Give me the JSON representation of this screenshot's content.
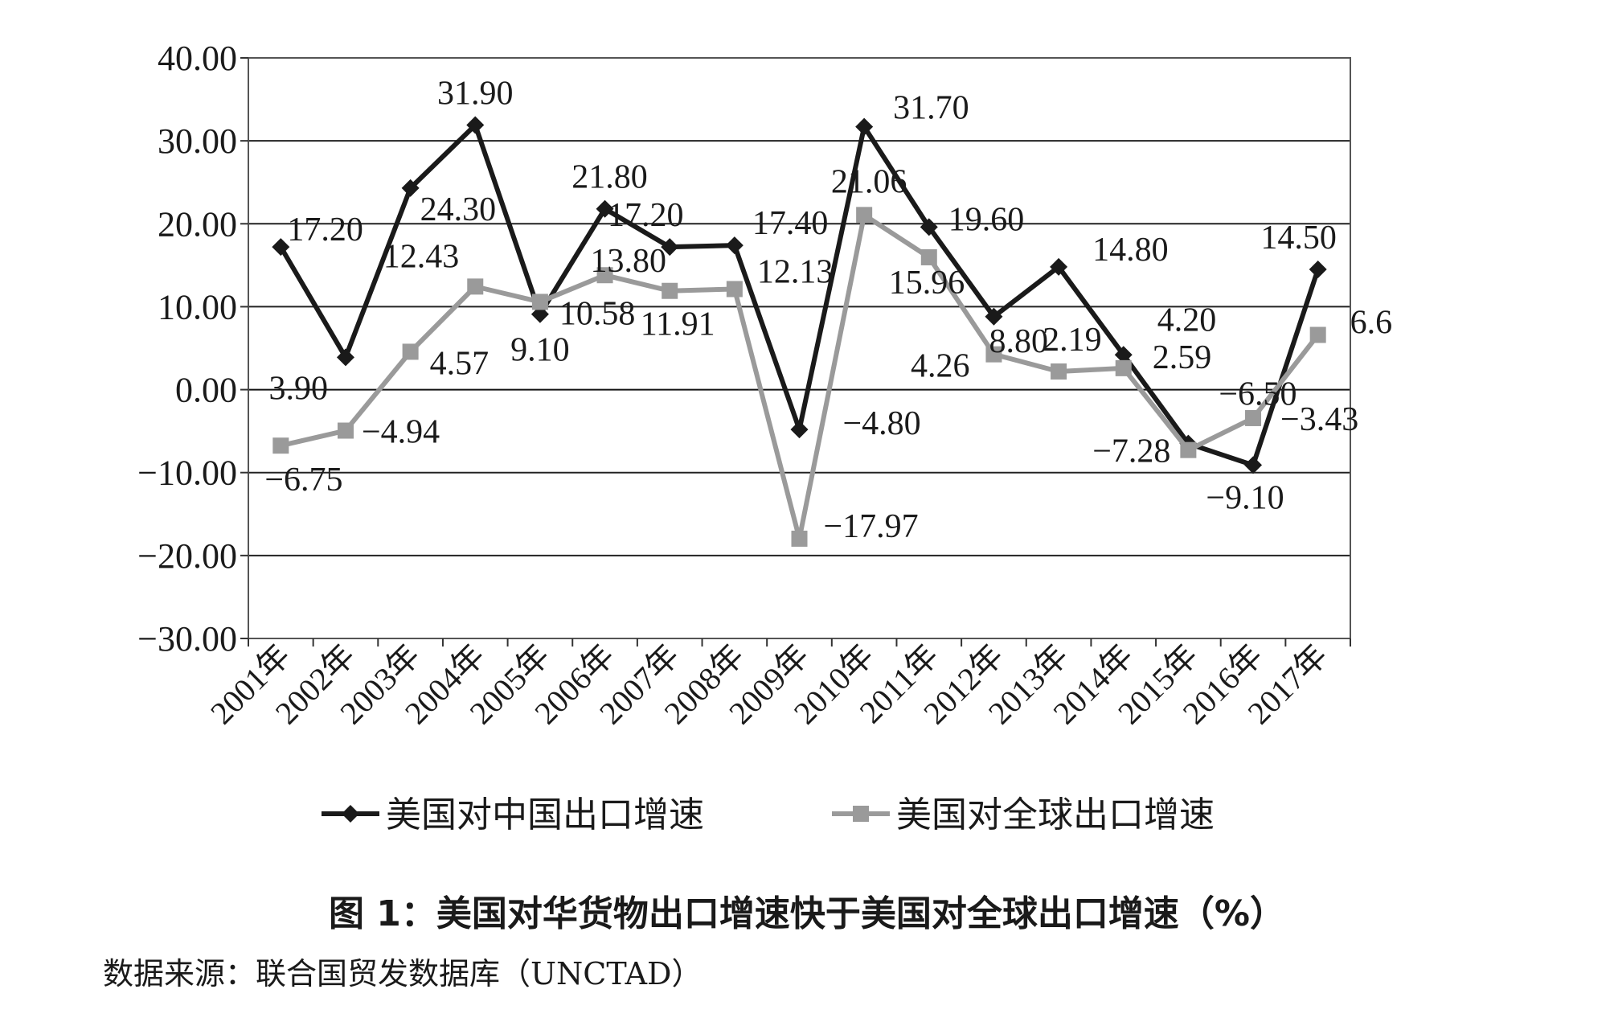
{
  "chart_data": {
    "type": "line",
    "categories": [
      "2001年",
      "2002年",
      "2003年",
      "2004年",
      "2005年",
      "2006年",
      "2007年",
      "2008年",
      "2009年",
      "2010年",
      "2011年",
      "2012年",
      "2013年",
      "2014年",
      "2015年",
      "2016年",
      "2017年"
    ],
    "ylim": [
      -30,
      40
    ],
    "yticks": [
      "40.00",
      "30.00",
      "20.00",
      "10.00",
      "0.00",
      "−10.00",
      "−20.00",
      "−30.00"
    ],
    "grid": true,
    "legend": "bottom",
    "series": [
      {
        "name": "美国对中国出口增速",
        "color": "#1a1a1a",
        "marker": "diamond",
        "values": [
          17.2,
          3.9,
          24.3,
          31.9,
          9.1,
          21.8,
          17.2,
          17.4,
          -4.8,
          31.7,
          19.6,
          8.8,
          14.8,
          4.2,
          -6.5,
          -9.1,
          14.5
        ],
        "labels": [
          "17.20",
          "3.90",
          "24.30",
          "31.90",
          "9.10",
          "21.80",
          "17.20",
          "17.40",
          "−4.80",
          "31.70",
          "19.60",
          "8.80",
          "14.80",
          "4.20",
          "−6.50",
          "−9.10",
          "14.50"
        ]
      },
      {
        "name": "美国对全球出口增速",
        "color": "#9a9a9a",
        "marker": "square",
        "values": [
          -6.75,
          -4.94,
          4.57,
          12.43,
          10.58,
          13.8,
          11.91,
          12.13,
          -17.97,
          21.06,
          15.96,
          4.26,
          2.19,
          2.59,
          -7.28,
          -3.43,
          6.6
        ],
        "labels": [
          "−6.75",
          "−4.94",
          "4.57",
          "12.43",
          "10.58",
          "13.80",
          "11.91",
          "12.13",
          "−17.97",
          "21.06",
          "15.96",
          "4.26",
          "2.19",
          "2.59",
          "−7.28",
          "−3.43",
          "6.6"
        ]
      }
    ]
  },
  "caption": "图 1：美国对华货物出口增速快于美国对全球出口增速（%）",
  "source": "数据来源：联合国贸发数据库（UNCTAD）"
}
